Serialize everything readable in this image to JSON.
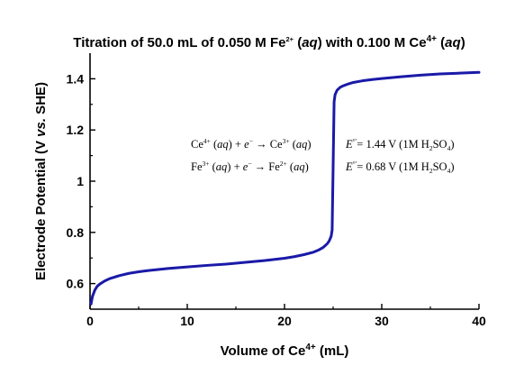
{
  "chart_data": {
    "type": "line",
    "title": {
      "prefix": "Titration of 50.0 mL of 0.050 M Fe",
      "fe_charge": "2+",
      "mid1": " (",
      "aq1": "aq",
      "mid2": ") with 0.100 M Ce",
      "ce_charge": "4+",
      "mid3": " (",
      "aq2": "aq",
      "suffix": ")"
    },
    "xlabel": {
      "prefix": "Volume of Ce",
      "charge": "4+",
      "suffix": " (mL)"
    },
    "ylabel": {
      "prefix": "Electrode Potential (V ",
      "vs": "vs.",
      "suffix": " SHE)"
    },
    "xlim": [
      0,
      40
    ],
    "ylim": [
      0.5,
      1.5
    ],
    "xticks": [
      "0",
      "10",
      "20",
      "30",
      "40"
    ],
    "yticks": [
      "0.6",
      "0.8",
      "1",
      "1.2",
      "1.4"
    ],
    "xtick_values": [
      0,
      10,
      20,
      30,
      40
    ],
    "ytick_values": [
      0.6,
      0.8,
      1.0,
      1.2,
      1.4
    ],
    "grid": false,
    "line_color": "#1a1aa8",
    "series": [
      {
        "x": [
          0.1,
          0.25,
          0.5,
          0.75,
          1,
          1.5,
          2,
          3,
          4,
          5,
          6,
          8,
          10,
          12,
          14,
          16,
          18,
          20,
          21,
          22,
          23,
          23.5,
          24,
          24.4,
          24.6,
          24.8,
          24.9,
          25.0,
          25.1,
          25.2,
          25.4,
          25.7,
          26,
          26.5,
          27,
          28,
          29,
          30,
          32,
          34,
          36,
          38,
          40
        ],
        "y": [
          0.52,
          0.55,
          0.575,
          0.59,
          0.598,
          0.61,
          0.619,
          0.631,
          0.64,
          0.646,
          0.651,
          0.659,
          0.665,
          0.671,
          0.676,
          0.683,
          0.69,
          0.699,
          0.705,
          0.713,
          0.723,
          0.731,
          0.742,
          0.756,
          0.767,
          0.785,
          0.81,
          1.06,
          1.31,
          1.338,
          1.355,
          1.366,
          1.372,
          1.379,
          1.385,
          1.392,
          1.397,
          1.401,
          1.408,
          1.414,
          1.419,
          1.422,
          1.425
        ]
      }
    ],
    "annotations": {
      "eq1": {
        "ce_charge1": "4+",
        "ce_aq1": "aq",
        "electron": "e",
        "electron_charge": "−",
        "arrow": "→",
        "ce_charge2": "3+",
        "ce_aq2": "aq",
        "e_symbol": "E",
        "e_sup": "°′",
        "value": "= 1.44 V (1M H",
        "sub2": "2",
        "so": "SO",
        "sub4": "4",
        "close": ")"
      },
      "eq2": {
        "fe_charge1": "3+",
        "fe_aq1": "aq",
        "electron": "e",
        "electron_charge": "−",
        "arrow": "→",
        "fe_charge2": "2+",
        "fe_aq2": "aq",
        "e_symbol": "E",
        "e_sup": "°′",
        "value": "= 0.68 V (1M H",
        "sub2": "2",
        "so": "SO",
        "sub4": "4",
        "close": ")"
      }
    }
  }
}
